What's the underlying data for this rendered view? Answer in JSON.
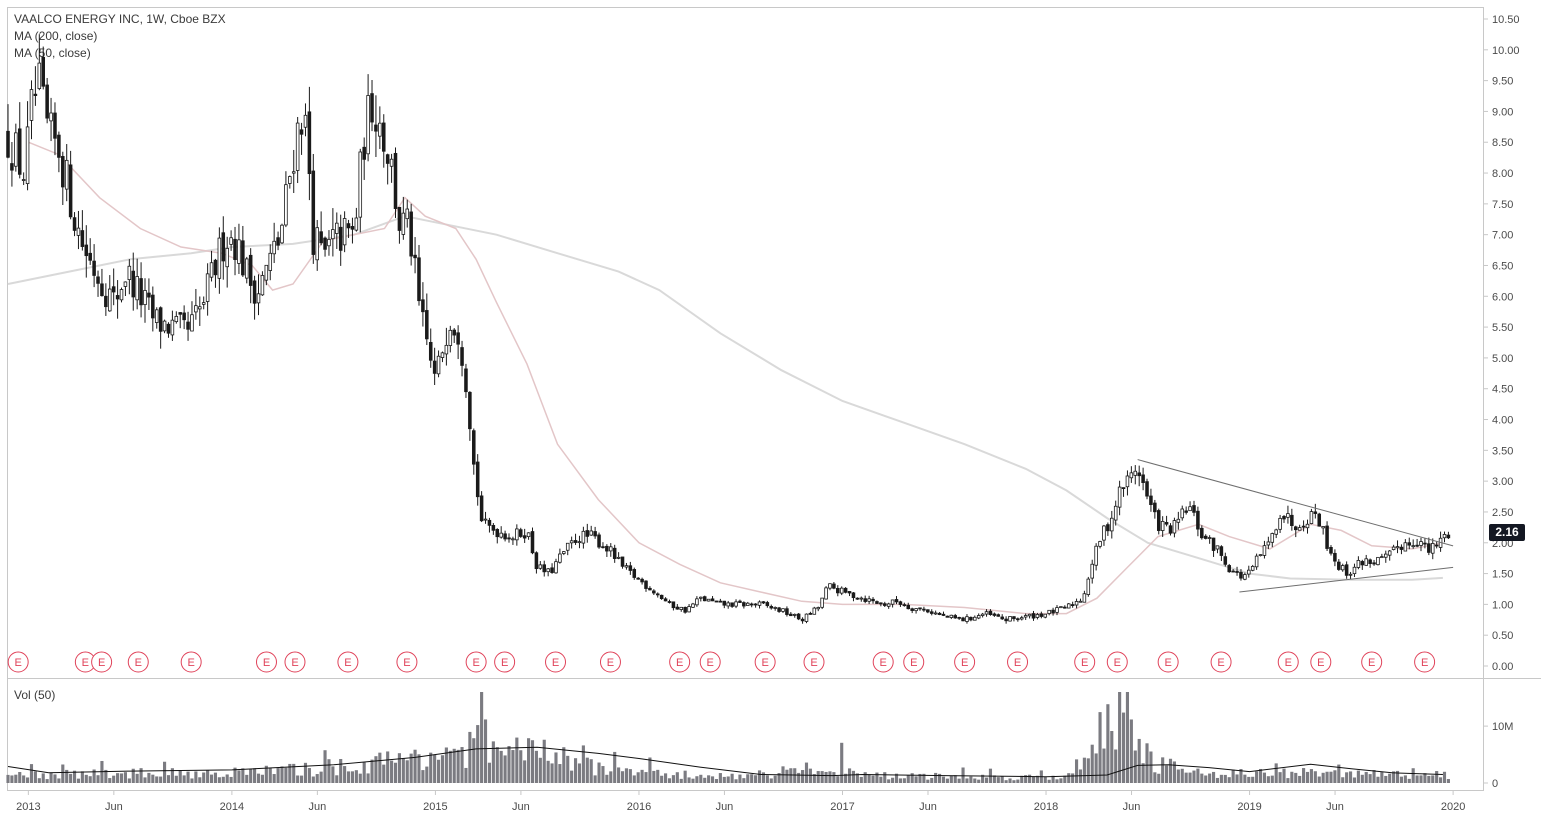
{
  "legend": {
    "symbol_line": "VAALCO ENERGY INC, 1W, Cboe BZX",
    "ma200": "MA (200, close)",
    "ma50": "MA (50, close)"
  },
  "volume_pane": {
    "title": "Vol (50)"
  },
  "last_price": "2.16",
  "earnings_label": "E",
  "colors": {
    "candle": "#1a1a1a",
    "ma200": "#d9d9d9",
    "ma50": "#e3c6c8",
    "trendline": "#6e6e6e",
    "volume_bar": "#7b7b81",
    "volume_ma": "#111111",
    "earnings": "#e0435a",
    "grid_border": "#c8c8c8"
  },
  "chart_data": {
    "type": "candlestick",
    "title": "VAALCO ENERGY INC, 1W, Cboe BZX",
    "y_axis": {
      "ylim": [
        0,
        10.5
      ],
      "ticks": [
        "0.00",
        "0.50",
        "1.00",
        "1.50",
        "2.00",
        "2.50",
        "3.00",
        "3.50",
        "4.00",
        "4.50",
        "5.00",
        "5.50",
        "6.00",
        "6.50",
        "7.00",
        "7.50",
        "8.00",
        "8.50",
        "9.00",
        "9.50",
        "10.00",
        "10.50"
      ]
    },
    "x_axis": {
      "range": [
        2012.9,
        2019.97
      ],
      "ticks": [
        {
          "label": "2013",
          "t": 2013.0
        },
        {
          "label": "Jun",
          "t": 2013.42
        },
        {
          "label": "2014",
          "t": 2014.0
        },
        {
          "label": "Jun",
          "t": 2014.42
        },
        {
          "label": "2015",
          "t": 2015.0
        },
        {
          "label": "Jun",
          "t": 2015.42
        },
        {
          "label": "2016",
          "t": 2016.0
        },
        {
          "label": "Jun",
          "t": 2016.42
        },
        {
          "label": "2017",
          "t": 2017.0
        },
        {
          "label": "Jun",
          "t": 2017.42
        },
        {
          "label": "2018",
          "t": 2018.0
        },
        {
          "label": "Jun",
          "t": 2018.42
        },
        {
          "label": "2019",
          "t": 2019.0
        },
        {
          "label": "Jun",
          "t": 2019.42
        },
        {
          "label": "2020",
          "t": 2020.0
        }
      ]
    },
    "price_path": [
      [
        2012.9,
        8.6
      ],
      [
        2012.98,
        8.0
      ],
      [
        2013.02,
        9.1
      ],
      [
        2013.05,
        9.4
      ],
      [
        2013.1,
        8.6
      ],
      [
        2013.15,
        8.4
      ],
      [
        2013.2,
        7.7
      ],
      [
        2013.25,
        7.0
      ],
      [
        2013.3,
        6.6
      ],
      [
        2013.35,
        6.3
      ],
      [
        2013.42,
        5.9
      ],
      [
        2013.48,
        6.4
      ],
      [
        2013.55,
        6.0
      ],
      [
        2013.62,
        5.6
      ],
      [
        2013.7,
        5.5
      ],
      [
        2013.78,
        5.4
      ],
      [
        2013.85,
        5.8
      ],
      [
        2013.92,
        6.5
      ],
      [
        2013.97,
        7.0
      ],
      [
        2014.02,
        6.9
      ],
      [
        2014.08,
        6.3
      ],
      [
        2014.13,
        6.1
      ],
      [
        2014.18,
        6.5
      ],
      [
        2014.24,
        7.0
      ],
      [
        2014.3,
        8.3
      ],
      [
        2014.34,
        9.0
      ],
      [
        2014.37,
        8.6
      ],
      [
        2014.4,
        7.0
      ],
      [
        2014.45,
        6.6
      ],
      [
        2014.5,
        6.9
      ],
      [
        2014.55,
        7.0
      ],
      [
        2014.6,
        7.0
      ],
      [
        2014.65,
        8.6
      ],
      [
        2014.69,
        9.2
      ],
      [
        2014.73,
        8.8
      ],
      [
        2014.78,
        8.2
      ],
      [
        2014.82,
        7.2
      ],
      [
        2014.87,
        7.1
      ],
      [
        2014.92,
        5.8
      ],
      [
        2014.96,
        5.2
      ],
      [
        2015.0,
        4.6
      ],
      [
        2015.03,
        5.1
      ],
      [
        2015.07,
        5.7
      ],
      [
        2015.12,
        5.4
      ],
      [
        2015.16,
        4.4
      ],
      [
        2015.19,
        3.2
      ],
      [
        2015.23,
        2.3
      ],
      [
        2015.3,
        2.2
      ],
      [
        2015.38,
        2.1
      ],
      [
        2015.45,
        2.2
      ],
      [
        2015.5,
        1.6
      ],
      [
        2015.56,
        1.5
      ],
      [
        2015.62,
        1.8
      ],
      [
        2015.7,
        2.1
      ],
      [
        2015.77,
        2.1
      ],
      [
        2015.85,
        1.9
      ],
      [
        2015.92,
        1.6
      ],
      [
        2016.0,
        1.4
      ],
      [
        2016.08,
        1.2
      ],
      [
        2016.15,
        1.0
      ],
      [
        2016.23,
        0.9
      ],
      [
        2016.3,
        1.1
      ],
      [
        2016.4,
        1.0
      ],
      [
        2016.5,
        1.0
      ],
      [
        2016.6,
        1.0
      ],
      [
        2016.7,
        0.9
      ],
      [
        2016.8,
        0.75
      ],
      [
        2016.88,
        0.95
      ],
      [
        2016.93,
        1.3
      ],
      [
        2017.0,
        1.2
      ],
      [
        2017.1,
        1.1
      ],
      [
        2017.2,
        1.0
      ],
      [
        2017.27,
        1.05
      ],
      [
        2017.33,
        0.95
      ],
      [
        2017.42,
        0.9
      ],
      [
        2017.5,
        0.8
      ],
      [
        2017.6,
        0.75
      ],
      [
        2017.7,
        0.85
      ],
      [
        2017.8,
        0.75
      ],
      [
        2017.9,
        0.8
      ],
      [
        2018.0,
        0.85
      ],
      [
        2018.1,
        0.95
      ],
      [
        2018.18,
        1.1
      ],
      [
        2018.22,
        1.6
      ],
      [
        2018.27,
        2.1
      ],
      [
        2018.32,
        2.4
      ],
      [
        2018.37,
        2.9
      ],
      [
        2018.4,
        3.0
      ],
      [
        2018.45,
        3.25
      ],
      [
        2018.5,
        2.7
      ],
      [
        2018.55,
        2.3
      ],
      [
        2018.62,
        2.2
      ],
      [
        2018.7,
        2.6
      ],
      [
        2018.77,
        2.1
      ],
      [
        2018.84,
        1.9
      ],
      [
        2018.9,
        1.6
      ],
      [
        2018.95,
        1.45
      ],
      [
        2019.0,
        1.5
      ],
      [
        2019.05,
        1.8
      ],
      [
        2019.1,
        2.0
      ],
      [
        2019.15,
        2.5
      ],
      [
        2019.22,
        2.3
      ],
      [
        2019.28,
        2.4
      ],
      [
        2019.33,
        2.5
      ],
      [
        2019.38,
        2.0
      ],
      [
        2019.43,
        1.65
      ],
      [
        2019.48,
        1.5
      ],
      [
        2019.55,
        1.7
      ],
      [
        2019.62,
        1.7
      ],
      [
        2019.68,
        1.75
      ],
      [
        2019.73,
        1.95
      ],
      [
        2019.78,
        2.0
      ],
      [
        2019.83,
        2.05
      ],
      [
        2019.88,
        1.85
      ],
      [
        2019.93,
        2.0
      ],
      [
        2019.97,
        2.16
      ]
    ],
    "ma200_path": [
      [
        2012.9,
        6.2
      ],
      [
        2013.2,
        6.4
      ],
      [
        2013.5,
        6.6
      ],
      [
        2013.8,
        6.7
      ],
      [
        2014.0,
        6.8
      ],
      [
        2014.3,
        6.85
      ],
      [
        2014.6,
        7.0
      ],
      [
        2014.85,
        7.3
      ],
      [
        2015.0,
        7.2
      ],
      [
        2015.3,
        7.0
      ],
      [
        2015.6,
        6.7
      ],
      [
        2015.9,
        6.4
      ],
      [
        2016.1,
        6.1
      ],
      [
        2016.4,
        5.4
      ],
      [
        2016.7,
        4.8
      ],
      [
        2017.0,
        4.3
      ],
      [
        2017.3,
        3.95
      ],
      [
        2017.6,
        3.6
      ],
      [
        2017.9,
        3.2
      ],
      [
        2018.1,
        2.85
      ],
      [
        2018.3,
        2.4
      ],
      [
        2018.5,
        2.0
      ],
      [
        2018.7,
        1.8
      ],
      [
        2018.9,
        1.6
      ],
      [
        2019.0,
        1.5
      ],
      [
        2019.2,
        1.42
      ],
      [
        2019.5,
        1.4
      ],
      [
        2019.8,
        1.4
      ],
      [
        2019.95,
        1.43
      ]
    ],
    "ma50_path": [
      [
        2013.0,
        8.5
      ],
      [
        2013.15,
        8.3
      ],
      [
        2013.35,
        7.6
      ],
      [
        2013.55,
        7.1
      ],
      [
        2013.75,
        6.8
      ],
      [
        2013.95,
        6.7
      ],
      [
        2014.1,
        6.5
      ],
      [
        2014.2,
        6.1
      ],
      [
        2014.3,
        6.2
      ],
      [
        2014.45,
        6.9
      ],
      [
        2014.6,
        7.0
      ],
      [
        2014.75,
        7.1
      ],
      [
        2014.85,
        7.6
      ],
      [
        2014.95,
        7.3
      ],
      [
        2015.1,
        7.1
      ],
      [
        2015.2,
        6.6
      ],
      [
        2015.3,
        5.9
      ],
      [
        2015.45,
        4.9
      ],
      [
        2015.6,
        3.6
      ],
      [
        2015.8,
        2.7
      ],
      [
        2016.0,
        2.0
      ],
      [
        2016.2,
        1.65
      ],
      [
        2016.4,
        1.35
      ],
      [
        2016.6,
        1.2
      ],
      [
        2016.8,
        1.05
      ],
      [
        2017.0,
        1.0
      ],
      [
        2017.3,
        1.0
      ],
      [
        2017.6,
        0.95
      ],
      [
        2017.9,
        0.85
      ],
      [
        2018.1,
        0.85
      ],
      [
        2018.25,
        1.1
      ],
      [
        2018.4,
        1.6
      ],
      [
        2018.55,
        2.1
      ],
      [
        2018.75,
        2.3
      ],
      [
        2018.9,
        2.1
      ],
      [
        2019.1,
        1.9
      ],
      [
        2019.3,
        2.3
      ],
      [
        2019.45,
        2.2
      ],
      [
        2019.6,
        1.95
      ],
      [
        2019.8,
        1.9
      ],
      [
        2019.95,
        2.0
      ]
    ],
    "trendlines": [
      {
        "name": "upper",
        "from": [
          2018.45,
          3.35
        ],
        "to": [
          2020.0,
          1.95
        ]
      },
      {
        "name": "lower",
        "from": [
          2018.95,
          1.2
        ],
        "to": [
          2020.0,
          1.6
        ]
      }
    ],
    "earnings": [
      2012.95,
      2013.28,
      2013.36,
      2013.54,
      2013.8,
      2014.17,
      2014.31,
      2014.57,
      2014.86,
      2015.2,
      2015.34,
      2015.59,
      2015.86,
      2016.2,
      2016.35,
      2016.62,
      2016.86,
      2017.2,
      2017.35,
      2017.6,
      2017.86,
      2018.19,
      2018.35,
      2018.6,
      2018.86,
      2019.19,
      2019.35,
      2019.6,
      2019.86
    ],
    "volume": {
      "ylim": [
        0,
        16000000
      ],
      "ticks": [
        {
          "label": "0",
          "v": 0
        },
        {
          "label": "10M",
          "v": 10000000
        }
      ],
      "levels": [
        [
          2012.9,
          1.4
        ],
        [
          2013.5,
          1.7
        ],
        [
          2014.0,
          1.8
        ],
        [
          2014.4,
          2.4
        ],
        [
          2014.7,
          3.4
        ],
        [
          2014.9,
          4.8
        ],
        [
          2015.2,
          6.0
        ],
        [
          2015.22,
          13.0
        ],
        [
          2015.26,
          5.2
        ],
        [
          2015.45,
          5.8
        ],
        [
          2015.7,
          3.5
        ],
        [
          2016.0,
          1.6
        ],
        [
          2016.5,
          1.2
        ],
        [
          2016.93,
          2.8
        ],
        [
          2017.2,
          1.3
        ],
        [
          2017.8,
          1.0
        ],
        [
          2018.1,
          1.1
        ],
        [
          2018.34,
          12.5
        ],
        [
          2018.38,
          15.5
        ],
        [
          2018.45,
          7.0
        ],
        [
          2018.55,
          3.5
        ],
        [
          2018.7,
          2.0
        ],
        [
          2019.0,
          1.7
        ],
        [
          2019.5,
          1.6
        ],
        [
          2019.97,
          1.4
        ]
      ],
      "ma_path": [
        [
          2012.9,
          2.9
        ],
        [
          2013.1,
          1.8
        ],
        [
          2013.5,
          2.1
        ],
        [
          2014.0,
          2.3
        ],
        [
          2014.5,
          3.2
        ],
        [
          2014.9,
          4.5
        ],
        [
          2015.2,
          6.0
        ],
        [
          2015.5,
          6.3
        ],
        [
          2015.8,
          5.2
        ],
        [
          2016.0,
          4.3
        ],
        [
          2016.3,
          2.8
        ],
        [
          2016.6,
          1.5
        ],
        [
          2016.95,
          1.3
        ],
        [
          2017.1,
          1.5
        ],
        [
          2017.5,
          1.3
        ],
        [
          2018.0,
          1.1
        ],
        [
          2018.3,
          1.4
        ],
        [
          2018.45,
          3.1
        ],
        [
          2018.6,
          3.2
        ],
        [
          2018.8,
          2.7
        ],
        [
          2019.0,
          2.0
        ],
        [
          2019.3,
          3.3
        ],
        [
          2019.5,
          2.5
        ],
        [
          2019.7,
          1.8
        ],
        [
          2019.95,
          1.5
        ]
      ]
    }
  }
}
